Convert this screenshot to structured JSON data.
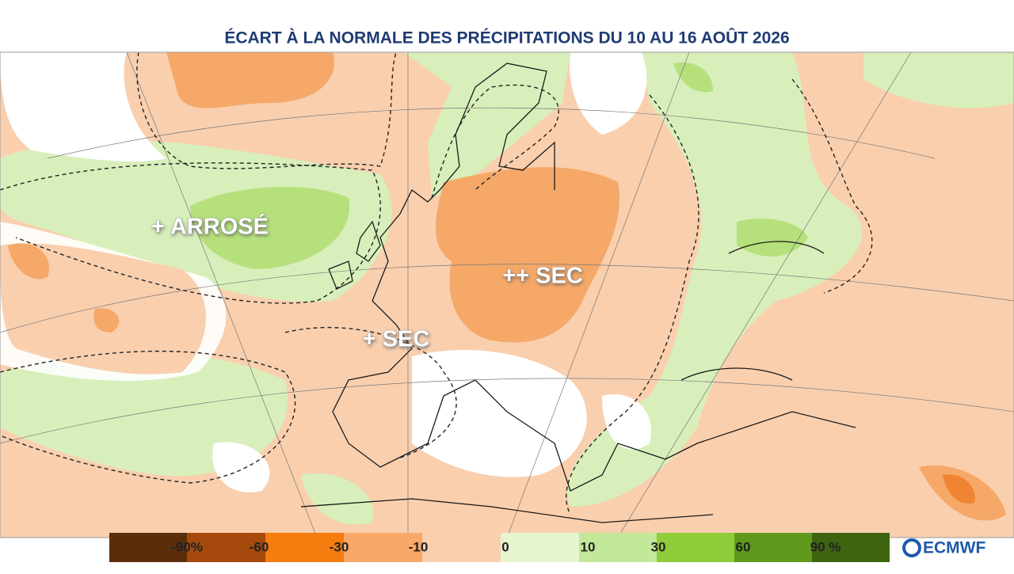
{
  "title": "ÉCART À LA NORMALE DES PRÉCIPITATIONS DU 10 AU 16 AOÛT 2026",
  "annotations": [
    "+ ARROSÉ",
    "++ SEC",
    "+ SEC"
  ],
  "legend": {
    "labels": [
      "-90%",
      "-60",
      "-30",
      "-10",
      "0",
      "10",
      "30",
      "60",
      "90 %"
    ]
  },
  "logo": "ECMWF"
}
